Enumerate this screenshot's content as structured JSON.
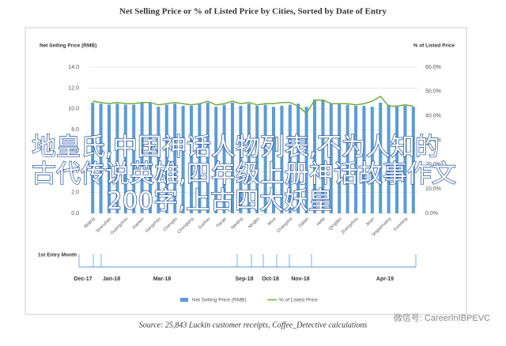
{
  "chart_data": {
    "type": "bar",
    "title": "Net Selling Price or % of Listed Price by Cities, Sorted by Date of Entry",
    "y_label": "Net Selling Price (RMB)",
    "y2_label": "% of Listed Price",
    "categories": [
      "Beijing",
      null,
      "Shenzhen",
      null,
      "Guangzhou",
      null,
      "Xiamen",
      null,
      "Hangzhou",
      null,
      "Chengdu",
      null,
      "Chongqing",
      null,
      "Suzhou",
      null,
      "Tianjin",
      null,
      "Nanjing",
      null,
      "Ningbo",
      null,
      "Wuxi",
      null,
      "Changsha",
      null,
      "Dalian",
      null,
      "Hefei",
      null,
      "Qingdao",
      null,
      "Zhengzhou",
      null,
      "Jinan",
      null,
      "Shijiazhuang",
      null,
      "Kunming",
      null
    ],
    "series": [
      {
        "name": "Net Selling Price (RMB)",
        "color": "#5b9bd5",
        "values": [
          10.6,
          10.5,
          10.4,
          10.5,
          10.4,
          10.4,
          10.6,
          10.6,
          10.2,
          10.4,
          10.5,
          10.3,
          10.3,
          10.5,
          10.6,
          10.2,
          10.4,
          10.6,
          10.3,
          10.5,
          10.3,
          10.4,
          10.2,
          10.3,
          10.4,
          10.5,
          10.2,
          10.9,
          10.9,
          10.5,
          10.5,
          10.4,
          10.3,
          10.3,
          10.2,
          10.6,
          10.4,
          10.3,
          10.3,
          10.2
        ]
      },
      {
        "name": "% of Listed Price",
        "color": "#70ad47",
        "type": "line",
        "axis": "y2",
        "values": [
          46,
          45.5,
          45,
          45.5,
          45,
          45,
          45.5,
          45.5,
          44.5,
          45,
          45.5,
          45,
          44.5,
          45,
          46,
          44.5,
          45,
          46,
          45,
          45.5,
          44.5,
          45,
          45,
          45.5,
          45.5,
          44,
          41,
          46.5,
          46.5,
          45,
          45,
          45,
          44.5,
          45,
          46,
          48,
          44,
          44,
          44.5,
          44
        ]
      }
    ],
    "ylim": [
      0,
      14
    ],
    "yticks": [
      {
        "value": 0,
        "label": "0.0"
      },
      {
        "value": 2,
        "label": "2.0"
      },
      {
        "value": 4,
        "label": "4.0"
      },
      {
        "value": 6,
        "label": "6.0"
      },
      {
        "value": 8,
        "label": "8.0"
      },
      {
        "value": 10,
        "label": "10.0"
      },
      {
        "value": 12,
        "label": "12.0"
      },
      {
        "value": 14,
        "label": "14.0"
      }
    ],
    "y2lim": [
      0,
      60
    ],
    "y2ticks": [
      {
        "value": 0,
        "label": "0.0%"
      },
      {
        "value": 10,
        "label": "10.0%"
      },
      {
        "value": 20,
        "label": "20.0%"
      },
      {
        "value": 30,
        "label": "30.0%"
      },
      {
        "value": 40,
        "label": "40.0%"
      },
      {
        "value": 50,
        "label": "50.0%"
      },
      {
        "value": 60,
        "label": "60.0%"
      }
    ],
    "entry_timeline": {
      "label": "1st Entry Month",
      "months": [
        "Dec-17",
        "Jan-18",
        "Mar-18",
        "Sep-18",
        "Oct-18",
        "Nov-18",
        "Apr-19"
      ]
    },
    "source": "Source: 25,843 Luckin customer receipts, Coffee_Detective calculations"
  },
  "overlay": [
    "地皇氏,中国神话人物列表,不为人知的",
    "古代传说英雄,四年级上册神话故事作文",
    "200字,上古四大妖皇"
  ],
  "watermark": "微信号: CareerInIBPEVC"
}
